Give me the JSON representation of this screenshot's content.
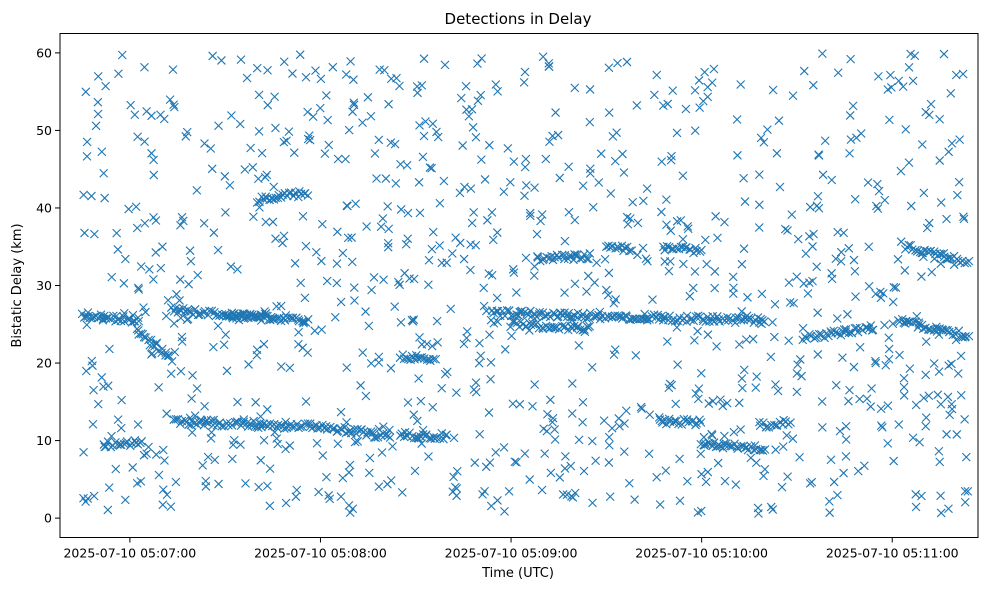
{
  "chart_data": {
    "type": "scatter",
    "title": "Detections in Delay",
    "xlabel": "Time (UTC)",
    "ylabel": "Bistatic Delay (km)",
    "x_type": "time",
    "date": "2025-07-10",
    "xlim": [
      "05:06:38",
      "05:11:27"
    ],
    "ylim": [
      -2.5,
      62.5
    ],
    "x_ticks": [
      "2025-07-10 05:07:00",
      "2025-07-10 05:08:00",
      "2025-07-10 05:09:00",
      "2025-07-10 05:10:00",
      "2025-07-10 05:11:00"
    ],
    "y_ticks": [
      0,
      10,
      20,
      30,
      40,
      50,
      60
    ],
    "marker": "x",
    "color": "#1f77b4",
    "grid": false,
    "legend": false,
    "point_count": 1750,
    "tracks": [
      {
        "t_start": "05:06:45",
        "t_end": "05:07:03",
        "delay_start": 26.0,
        "delay_end": 25.5,
        "note": "visible detection track"
      },
      {
        "t_start": "05:07:02",
        "t_end": "05:07:13",
        "delay_start": 24.5,
        "delay_end": 20.5
      },
      {
        "t_start": "05:07:13",
        "t_end": "05:07:45",
        "delay_start": 26.8,
        "delay_end": 26.0
      },
      {
        "t_start": "05:07:40",
        "t_end": "05:07:56",
        "delay_start": 41.0,
        "delay_end": 42.0
      },
      {
        "t_start": "05:07:30",
        "t_end": "05:07:56",
        "delay_start": 26.0,
        "delay_end": 25.5
      },
      {
        "t_start": "05:07:14",
        "t_end": "05:07:55",
        "delay_start": 12.5,
        "delay_end": 11.8
      },
      {
        "t_start": "05:06:52",
        "t_end": "05:07:04",
        "delay_start": 9.5,
        "delay_end": 9.8
      },
      {
        "t_start": "05:07:56",
        "t_end": "05:08:22",
        "delay_start": 12.0,
        "delay_end": 10.5
      },
      {
        "t_start": "05:08:25",
        "t_end": "05:08:36",
        "delay_start": 20.8,
        "delay_end": 20.5
      },
      {
        "t_start": "05:08:25",
        "t_end": "05:08:40",
        "delay_start": 10.8,
        "delay_end": 10.5
      },
      {
        "t_start": "05:08:54",
        "t_end": "05:09:48",
        "delay_start": 26.5,
        "delay_end": 25.8
      },
      {
        "t_start": "05:09:00",
        "t_end": "05:09:25",
        "delay_start": 25.0,
        "delay_end": 24.5
      },
      {
        "t_start": "05:09:08",
        "t_end": "05:09:25",
        "delay_start": 33.5,
        "delay_end": 33.8
      },
      {
        "t_start": "05:09:30",
        "t_end": "05:09:38",
        "delay_start": 35.0,
        "delay_end": 34.8
      },
      {
        "t_start": "05:09:48",
        "t_end": "05:10:00",
        "delay_start": 34.8,
        "delay_end": 34.5
      },
      {
        "t_start": "05:09:48",
        "t_end": "05:10:20",
        "delay_start": 25.8,
        "delay_end": 25.5
      },
      {
        "t_start": "05:09:47",
        "t_end": "05:10:00",
        "delay_start": 12.5,
        "delay_end": 12.3
      },
      {
        "t_start": "05:10:00",
        "t_end": "05:10:20",
        "delay_start": 9.5,
        "delay_end": 9.0
      },
      {
        "t_start": "05:10:18",
        "t_end": "05:10:28",
        "delay_start": 12.0,
        "delay_end": 12.3
      },
      {
        "t_start": "05:10:32",
        "t_end": "05:10:54",
        "delay_start": 23.2,
        "delay_end": 24.5
      },
      {
        "t_start": "05:11:02",
        "t_end": "05:11:24",
        "delay_start": 25.5,
        "delay_end": 23.5
      },
      {
        "t_start": "05:11:04",
        "t_end": "05:11:24",
        "delay_start": 35.0,
        "delay_end": 33.0
      }
    ]
  }
}
